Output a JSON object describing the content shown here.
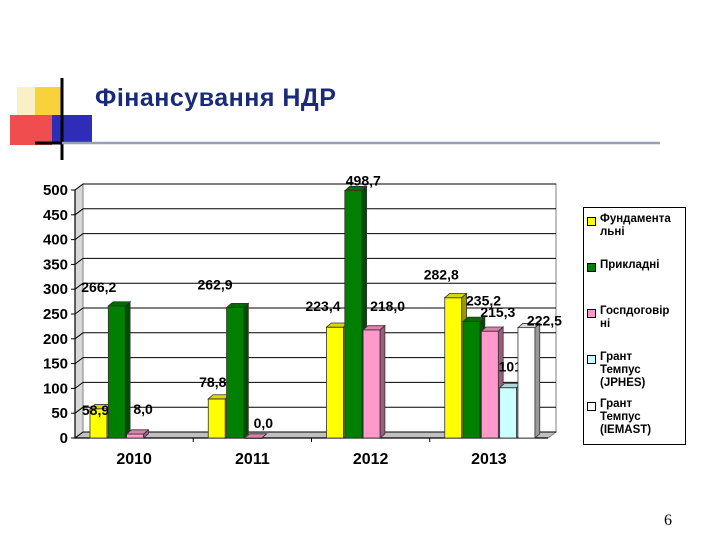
{
  "slide": {
    "title": "Фінансування НДР",
    "page_number": "6"
  },
  "colors": {
    "title_text": "#1a2a7a",
    "deco_yellow": "#f7d23a",
    "deco_red": "#ee3b3b",
    "deco_blue": "#2d2db8",
    "title_rule": "#9aa0b4"
  },
  "chart_data": {
    "type": "bar",
    "title": "",
    "xlabel": "",
    "ylabel": "",
    "categories": [
      "2010",
      "2011",
      "2012",
      "2013"
    ],
    "ylim": [
      0,
      500
    ],
    "yticks": [
      0,
      50,
      100,
      150,
      200,
      250,
      300,
      350,
      400,
      450,
      500
    ],
    "grid": true,
    "legend_position": "right",
    "style": "3d-bar",
    "series": [
      {
        "name": "Фундаментальні",
        "legend_label": "Фундамента\nльні",
        "color": "#ffff00",
        "values": [
          58.9,
          78.8,
          223.4,
          282.8
        ],
        "labels": [
          "58,9",
          "78,8",
          "223,4",
          "282,8"
        ]
      },
      {
        "name": "Прикладні",
        "legend_label": "Прикладні",
        "color": "#008000",
        "values": [
          266.2,
          262.9,
          498.7,
          235.2
        ],
        "labels": [
          "266,2",
          "262,9",
          "498,7",
          "235,2"
        ]
      },
      {
        "name": "Госпдоговірні",
        "legend_label": "Госпдоговір\nні",
        "color": "#ff99cc",
        "values": [
          8.0,
          0.0,
          218.0,
          215.3
        ],
        "labels": [
          "8,0",
          "0,0",
          "218,0",
          "215,3"
        ]
      },
      {
        "name": "Грант Темпус (JPHES)",
        "legend_label": "Грант\nТемпус\n(JPHES)",
        "color": "#ccffff",
        "values": [
          null,
          null,
          null,
          101.4
        ],
        "labels": [
          "",
          "",
          "",
          "101,4"
        ]
      },
      {
        "name": "Грант Темпус (IEMAST)",
        "legend_label": "Грант\nТемпус\n(IEMAST)",
        "color": "#ffffff",
        "values": [
          null,
          null,
          null,
          222.5
        ],
        "labels": [
          "",
          "",
          "",
          "222,5"
        ]
      }
    ]
  }
}
